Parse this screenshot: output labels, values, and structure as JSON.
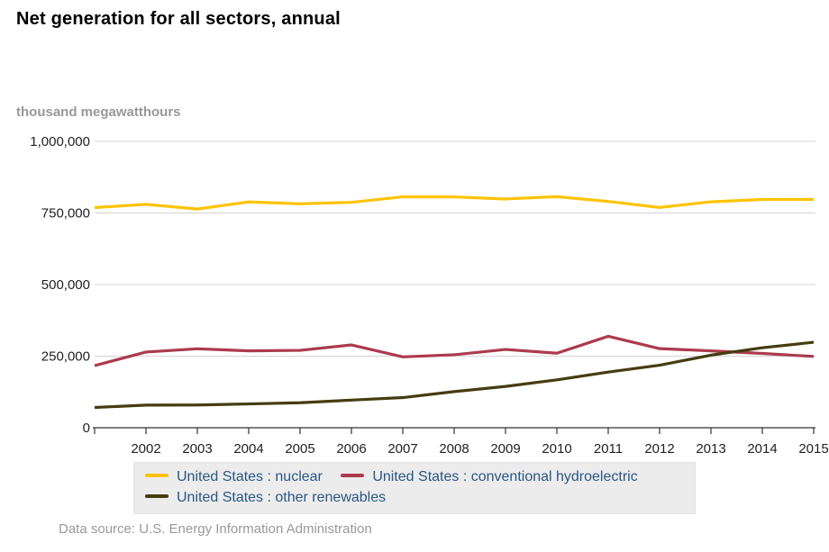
{
  "title": "Net generation for all sectors, annual",
  "unit_label": "thousand megawatthours",
  "source": "Data source: U.S. Energy Information Administration",
  "colors": {
    "grid": "#d4d4d4",
    "axis": "#333333",
    "tick_text": "#222222",
    "legend_text": "#2A5784",
    "legend_bg": "#ececec",
    "muted_text": "#999999"
  },
  "chart_data": {
    "type": "line",
    "title": "Net generation for all sectors, annual",
    "ylabel": "thousand megawatthours",
    "xlabel": "",
    "grid": "horizontal",
    "legend_position": "bottom",
    "ylim": [
      0,
      1000000
    ],
    "x": [
      2001,
      2002,
      2003,
      2004,
      2005,
      2006,
      2007,
      2008,
      2009,
      2010,
      2011,
      2012,
      2013,
      2014,
      2015
    ],
    "x_tick_labels": [
      "2002",
      "2003",
      "2004",
      "2005",
      "2006",
      "2007",
      "2008",
      "2009",
      "2010",
      "2011",
      "2012",
      "2013",
      "2014",
      "2015"
    ],
    "y_ticks": [
      {
        "value": 0,
        "label": "0"
      },
      {
        "value": 250000,
        "label": "250,000"
      },
      {
        "value": 500000,
        "label": "500,000"
      },
      {
        "value": 750000,
        "label": "750,000"
      },
      {
        "value": 1000000,
        "label": "1,000,000"
      }
    ],
    "series": [
      {
        "name": "United States : nuclear",
        "color": "#FDC303",
        "values": [
          768826,
          780064,
          763733,
          788528,
          781986,
          787219,
          806425,
          806208,
          798855,
          806968,
          790204,
          769331,
          789016,
          797166,
          797178
        ]
      },
      {
        "name": "United States : conventional hydroelectric",
        "color": "#AC3A4D",
        "values": [
          216961,
          264329,
          275806,
          268417,
          270321,
          289246,
          247510,
          254831,
          273445,
          260203,
          319355,
          276240,
          268565,
          259367,
          249080
        ]
      },
      {
        "name": "United States : other renewables",
        "color": "#453C11",
        "values": [
          70769,
          79109,
          79487,
          83067,
          87329,
          96525,
          105238,
          126212,
          144279,
          167173,
          194286,
          218333,
          253508,
          279188,
          298591
        ]
      }
    ]
  }
}
